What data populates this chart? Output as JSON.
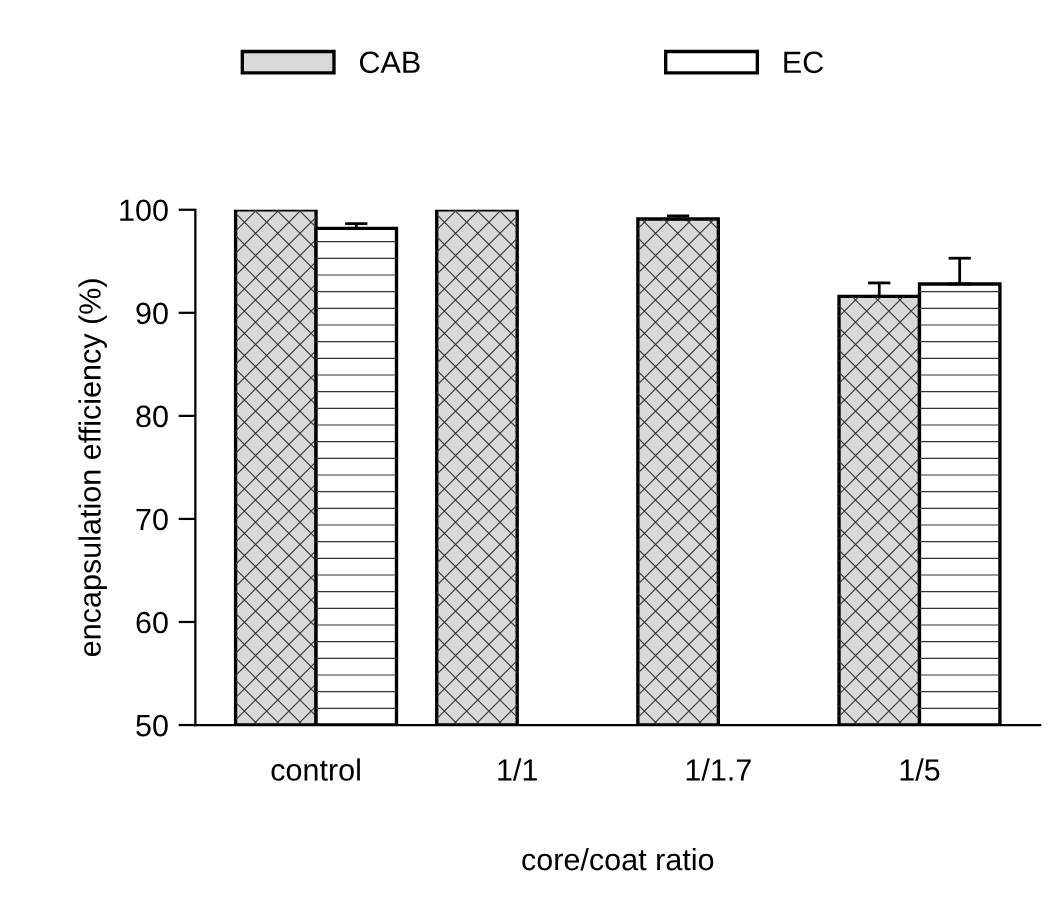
{
  "chart_data": {
    "type": "bar",
    "xlabel": "core/coat ratio",
    "ylabel": "encapsulation efficiency (%)",
    "categories": [
      "control",
      "1/1",
      "1/1.7",
      "1/5"
    ],
    "series": [
      {
        "name": "CAB",
        "color": "#d9d9d9",
        "values": [
          100,
          100,
          99.1,
          91.6
        ],
        "errors": [
          null,
          null,
          0.3,
          1.3
        ]
      },
      {
        "name": "EC",
        "color": "#ffffff",
        "values": [
          98.2,
          null,
          null,
          92.8
        ],
        "errors": [
          0.45,
          null,
          null,
          2.5
        ]
      }
    ],
    "ylim": [
      50,
      100
    ],
    "yticks": [
      50,
      60,
      70,
      80,
      90,
      100
    ],
    "grid": false,
    "legend": "top"
  }
}
